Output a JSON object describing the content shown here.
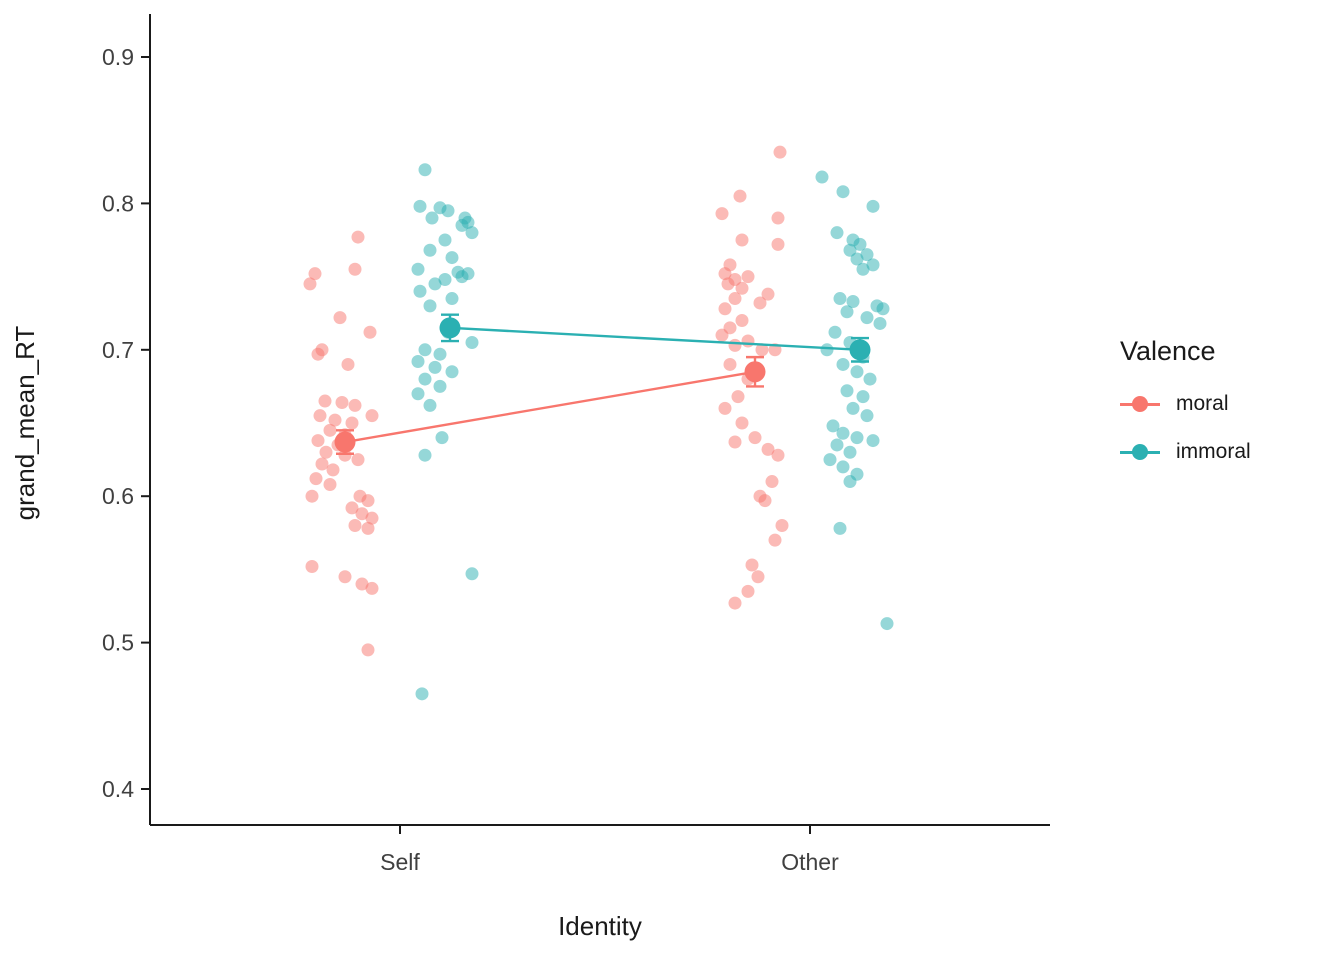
{
  "figure": {
    "background": "#ffffff"
  },
  "legend": {
    "title": "Valence",
    "items": [
      {
        "label": "moral",
        "color": "#F8766D"
      },
      {
        "label": "immoral",
        "color": "#2BB0B2"
      }
    ]
  },
  "chart_data": {
    "type": "scatter",
    "title": "",
    "xlabel": "Identity",
    "ylabel": "grand_mean_RT",
    "categories": [
      "Self",
      "Other"
    ],
    "y_ticks": [
      0.4,
      0.5,
      0.6,
      0.7,
      0.8,
      0.9
    ],
    "ylim": [
      0.38,
      0.92
    ],
    "grid": false,
    "legend_position": "right",
    "series": [
      {
        "name": "moral",
        "color": "#F8766D",
        "means": {
          "Self": 0.637,
          "Other": 0.685
        },
        "se": {
          "Self": 0.008,
          "Other": 0.01
        },
        "points": {
          "Self": [
            [
              13,
              0.777
            ],
            [
              10,
              0.755
            ],
            [
              -30,
              0.752
            ],
            [
              -35,
              0.745
            ],
            [
              -5,
              0.722
            ],
            [
              25,
              0.712
            ],
            [
              -23,
              0.7
            ],
            [
              -27,
              0.697
            ],
            [
              3,
              0.69
            ],
            [
              -20,
              0.665
            ],
            [
              -3,
              0.664
            ],
            [
              10,
              0.662
            ],
            [
              -25,
              0.655
            ],
            [
              27,
              0.655
            ],
            [
              -10,
              0.652
            ],
            [
              7,
              0.65
            ],
            [
              -15,
              0.645
            ],
            [
              0,
              0.642
            ],
            [
              -27,
              0.638
            ],
            [
              -7,
              0.635
            ],
            [
              -19,
              0.63
            ],
            [
              0,
              0.628
            ],
            [
              13,
              0.625
            ],
            [
              -23,
              0.622
            ],
            [
              -12,
              0.618
            ],
            [
              -29,
              0.612
            ],
            [
              -15,
              0.608
            ],
            [
              -33,
              0.6
            ],
            [
              15,
              0.6
            ],
            [
              23,
              0.597
            ],
            [
              7,
              0.592
            ],
            [
              17,
              0.588
            ],
            [
              27,
              0.585
            ],
            [
              10,
              0.58
            ],
            [
              23,
              0.578
            ],
            [
              -33,
              0.552
            ],
            [
              0,
              0.545
            ],
            [
              17,
              0.54
            ],
            [
              27,
              0.537
            ],
            [
              23,
              0.495
            ]
          ],
          "Other": [
            [
              25,
              0.835
            ],
            [
              -15,
              0.805
            ],
            [
              -33,
              0.793
            ],
            [
              23,
              0.79
            ],
            [
              -13,
              0.775
            ],
            [
              23,
              0.772
            ],
            [
              -25,
              0.758
            ],
            [
              -30,
              0.752
            ],
            [
              -7,
              0.75
            ],
            [
              -20,
              0.748
            ],
            [
              -27,
              0.745
            ],
            [
              -13,
              0.742
            ],
            [
              13,
              0.738
            ],
            [
              -20,
              0.735
            ],
            [
              5,
              0.732
            ],
            [
              -30,
              0.728
            ],
            [
              -13,
              0.72
            ],
            [
              -25,
              0.715
            ],
            [
              -33,
              0.71
            ],
            [
              -7,
              0.706
            ],
            [
              -20,
              0.703
            ],
            [
              7,
              0.7
            ],
            [
              20,
              0.7
            ],
            [
              -25,
              0.69
            ],
            [
              -7,
              0.68
            ],
            [
              -17,
              0.668
            ],
            [
              -30,
              0.66
            ],
            [
              -13,
              0.65
            ],
            [
              0,
              0.64
            ],
            [
              -20,
              0.637
            ],
            [
              13,
              0.632
            ],
            [
              23,
              0.628
            ],
            [
              17,
              0.61
            ],
            [
              5,
              0.6
            ],
            [
              10,
              0.597
            ],
            [
              27,
              0.58
            ],
            [
              20,
              0.57
            ],
            [
              -3,
              0.553
            ],
            [
              3,
              0.545
            ],
            [
              -7,
              0.535
            ],
            [
              -20,
              0.527
            ]
          ]
        }
      },
      {
        "name": "immoral",
        "color": "#2BB0B2",
        "means": {
          "Self": 0.715,
          "Other": 0.7
        },
        "se": {
          "Self": 0.009,
          "Other": 0.008
        },
        "points": {
          "Self": [
            [
              -25,
              0.823
            ],
            [
              -30,
              0.798
            ],
            [
              -10,
              0.797
            ],
            [
              -2,
              0.795
            ],
            [
              -18,
              0.79
            ],
            [
              15,
              0.79
            ],
            [
              18,
              0.787
            ],
            [
              12,
              0.785
            ],
            [
              22,
              0.78
            ],
            [
              -5,
              0.775
            ],
            [
              -20,
              0.768
            ],
            [
              2,
              0.763
            ],
            [
              -32,
              0.755
            ],
            [
              8,
              0.753
            ],
            [
              18,
              0.752
            ],
            [
              12,
              0.75
            ],
            [
              -5,
              0.748
            ],
            [
              -15,
              0.745
            ],
            [
              -30,
              0.74
            ],
            [
              2,
              0.735
            ],
            [
              -20,
              0.73
            ],
            [
              -2,
              0.712
            ],
            [
              22,
              0.705
            ],
            [
              -25,
              0.7
            ],
            [
              -10,
              0.697
            ],
            [
              -32,
              0.692
            ],
            [
              -15,
              0.688
            ],
            [
              2,
              0.685
            ],
            [
              -25,
              0.68
            ],
            [
              -10,
              0.675
            ],
            [
              -32,
              0.67
            ],
            [
              -20,
              0.662
            ],
            [
              -8,
              0.64
            ],
            [
              -25,
              0.628
            ],
            [
              22,
              0.547
            ],
            [
              -28,
              0.465
            ]
          ],
          "Other": [
            [
              -38,
              0.818
            ],
            [
              -17,
              0.808
            ],
            [
              13,
              0.798
            ],
            [
              -23,
              0.78
            ],
            [
              -7,
              0.775
            ],
            [
              0,
              0.772
            ],
            [
              -10,
              0.768
            ],
            [
              7,
              0.765
            ],
            [
              -3,
              0.762
            ],
            [
              13,
              0.758
            ],
            [
              3,
              0.755
            ],
            [
              -20,
              0.735
            ],
            [
              -7,
              0.733
            ],
            [
              17,
              0.73
            ],
            [
              23,
              0.728
            ],
            [
              -13,
              0.726
            ],
            [
              7,
              0.722
            ],
            [
              20,
              0.718
            ],
            [
              -25,
              0.712
            ],
            [
              -10,
              0.705
            ],
            [
              -33,
              0.7
            ],
            [
              3,
              0.695
            ],
            [
              -17,
              0.69
            ],
            [
              -3,
              0.685
            ],
            [
              10,
              0.68
            ],
            [
              -13,
              0.672
            ],
            [
              3,
              0.668
            ],
            [
              -7,
              0.66
            ],
            [
              7,
              0.655
            ],
            [
              -27,
              0.648
            ],
            [
              -17,
              0.643
            ],
            [
              -3,
              0.64
            ],
            [
              13,
              0.638
            ],
            [
              -23,
              0.635
            ],
            [
              -10,
              0.63
            ],
            [
              -30,
              0.625
            ],
            [
              -17,
              0.62
            ],
            [
              -3,
              0.615
            ],
            [
              -10,
              0.61
            ],
            [
              -20,
              0.578
            ],
            [
              27,
              0.513
            ]
          ]
        }
      }
    ]
  }
}
